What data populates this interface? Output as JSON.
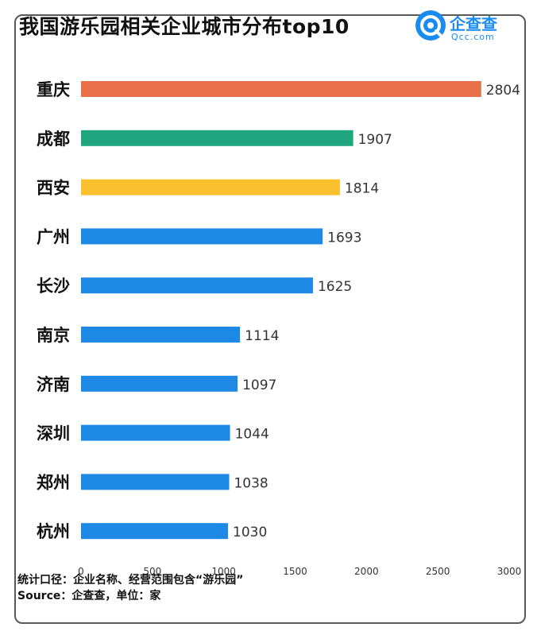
{
  "header": {
    "title": "我国游乐园相关企业城市分布top10",
    "logo_text": "企查查",
    "logo_sub": "Qcc.com"
  },
  "footer": {
    "note": "统计口径：企业名称、经营范围包含“游乐园”",
    "source": "Source：企查查，单位：家"
  },
  "chart_data": {
    "type": "bar",
    "orientation": "horizontal",
    "title": "我国游乐园相关企业城市分布top10",
    "categories": [
      "重庆",
      "成都",
      "西安",
      "广州",
      "长沙",
      "南京",
      "济南",
      "深圳",
      "郑州",
      "杭州"
    ],
    "values": [
      2804,
      1907,
      1814,
      1693,
      1625,
      1114,
      1097,
      1044,
      1038,
      1030
    ],
    "bar_colors": [
      "#e8714a",
      "#1fa67e",
      "#fbc02d",
      "#1e88e5",
      "#1e88e5",
      "#1e88e5",
      "#1e88e5",
      "#1e88e5",
      "#1e88e5",
      "#1e88e5"
    ],
    "x_ticks": [
      0,
      500,
      1000,
      1500,
      2000,
      2500,
      3000
    ],
    "xlim": [
      0,
      3000
    ],
    "xlabel": "",
    "ylabel": "",
    "grid": false,
    "data_labels": true
  }
}
